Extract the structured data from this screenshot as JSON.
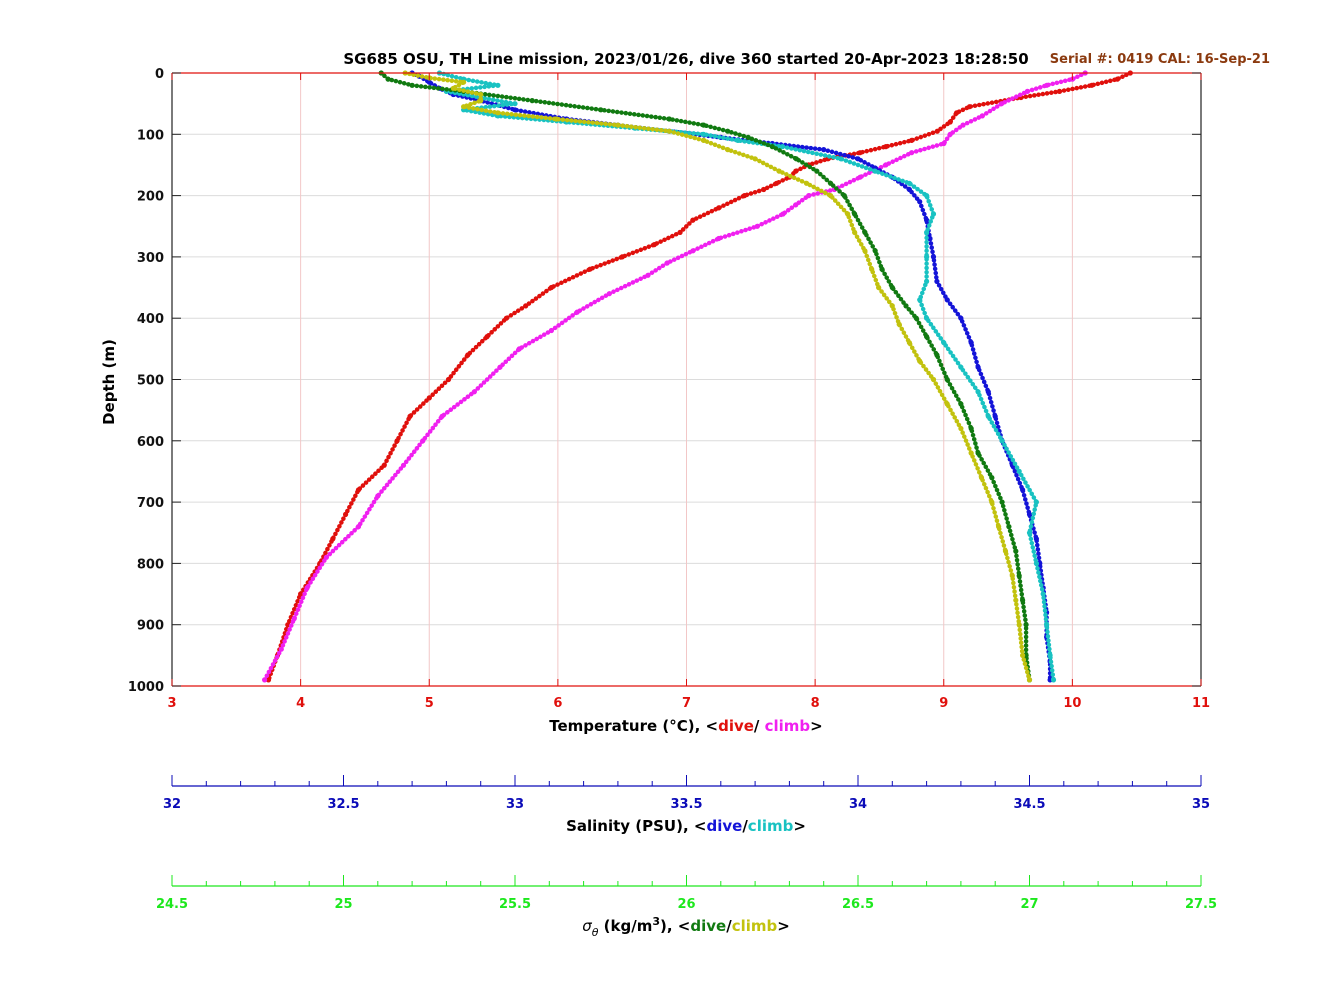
{
  "colors": {
    "temp": "#e0100c",
    "salinity": "#0b0bb8",
    "sigma": "#1de81d",
    "temp_dive": "#e0100c",
    "temp_climb": "#f020f0",
    "sal_dive": "#1414d8",
    "sal_climb": "#19c2c2",
    "sig_dive": "#117a11",
    "sig_climb": "#c2c20e",
    "serial": "#8b3a0f",
    "grid": "#f2c7c7"
  },
  "header": {
    "title": "SG685 OSU, TH Line mission, 2023/01/26, dive 360 started 20-Apr-2023 18:28:50",
    "serial": "Serial #: 0419  CAL: 16-Sep-21"
  },
  "chart_data": {
    "type": "scatter",
    "title": "SG685 OSU, TH Line mission, 2023/01/26, dive 360 started 20-Apr-2023 18:28:50",
    "ylabel": "Depth (m)",
    "ylim": [
      0,
      1000
    ],
    "y_reversed": true,
    "y_ticks": [
      0,
      100,
      200,
      300,
      400,
      500,
      600,
      700,
      800,
      900,
      1000
    ],
    "grid": true,
    "axes": [
      {
        "id": "temp",
        "label_prefix": "Temperature (°C), <",
        "label_dive": "dive",
        "label_sep": "/ ",
        "label_climb": "climb",
        "label_suffix": ">",
        "xlim": [
          3,
          11
        ],
        "ticks": [
          3,
          4,
          5,
          6,
          7,
          8,
          9,
          10,
          11
        ]
      },
      {
        "id": "salinity",
        "label_prefix": "Salinity (PSU), <",
        "label_dive": "dive",
        "label_sep": "/",
        "label_climb": "climb",
        "label_suffix": ">",
        "xlim": [
          32,
          35
        ],
        "ticks": [
          32,
          32.5,
          33,
          33.5,
          34,
          34.5,
          35
        ],
        "minor_step": 0.1
      },
      {
        "id": "sigma",
        "label_symbol": "σ",
        "label_symbol_sub": "θ",
        "label_prefix": " (kg/m",
        "label_sup": "3",
        "label_mid": "), <",
        "label_dive": "dive",
        "label_sep": "/",
        "label_climb": "climb",
        "label_suffix": ">",
        "xlim": [
          24.5,
          27.5
        ],
        "ticks": [
          24.5,
          25,
          25.5,
          26,
          26.5,
          27,
          27.5
        ],
        "minor_step": 0.1
      }
    ],
    "series": [
      {
        "name": "dive",
        "axis": "temp",
        "colorKey": "temp_dive",
        "depth": [
          0,
          10,
          20,
          30,
          40,
          55,
          65,
          80,
          95,
          110,
          120,
          130,
          140,
          150,
          160,
          170,
          180,
          190,
          200,
          220,
          240,
          260,
          280,
          300,
          320,
          350,
          380,
          400,
          430,
          460,
          500,
          530,
          560,
          600,
          640,
          680,
          720,
          760,
          800,
          850,
          900,
          950,
          990
        ],
        "x": [
          10.45,
          10.35,
          10.15,
          9.9,
          9.6,
          9.2,
          9.1,
          9.05,
          8.95,
          8.75,
          8.55,
          8.35,
          8.1,
          7.95,
          7.85,
          7.8,
          7.7,
          7.6,
          7.45,
          7.25,
          7.05,
          6.95,
          6.75,
          6.5,
          6.25,
          5.95,
          5.75,
          5.6,
          5.45,
          5.3,
          5.15,
          5.0,
          4.85,
          4.75,
          4.65,
          4.45,
          4.35,
          4.25,
          4.15,
          4.0,
          3.9,
          3.82,
          3.75
        ]
      },
      {
        "name": "climb",
        "axis": "temp",
        "colorKey": "temp_climb",
        "depth": [
          0,
          10,
          20,
          30,
          50,
          70,
          85,
          100,
          115,
          130,
          150,
          170,
          190,
          200,
          215,
          230,
          250,
          270,
          290,
          310,
          330,
          360,
          390,
          420,
          450,
          480,
          520,
          560,
          600,
          640,
          690,
          740,
          790,
          840,
          890,
          940,
          990
        ],
        "x": [
          10.1,
          10.0,
          9.8,
          9.65,
          9.45,
          9.3,
          9.15,
          9.05,
          9.0,
          8.75,
          8.55,
          8.35,
          8.15,
          7.95,
          7.85,
          7.75,
          7.55,
          7.25,
          7.05,
          6.85,
          6.7,
          6.4,
          6.15,
          5.95,
          5.7,
          5.55,
          5.35,
          5.1,
          4.95,
          4.8,
          4.6,
          4.45,
          4.2,
          4.05,
          3.95,
          3.85,
          3.72
        ]
      },
      {
        "name": "dive",
        "axis": "salinity",
        "colorKey": "sal_dive",
        "depth": [
          0,
          5,
          15,
          25,
          35,
          45,
          60,
          75,
          85,
          95,
          105,
          115,
          125,
          140,
          155,
          170,
          190,
          210,
          240,
          270,
          300,
          340,
          370,
          400,
          440,
          480,
          520,
          560,
          600,
          640,
          680,
          720,
          760,
          800,
          840,
          880,
          920,
          960,
          990
        ],
        "x": [
          32.7,
          32.72,
          32.75,
          32.78,
          32.82,
          32.9,
          33.0,
          33.15,
          33.3,
          33.45,
          33.6,
          33.75,
          33.9,
          34.0,
          34.05,
          34.1,
          34.15,
          34.18,
          34.2,
          34.21,
          34.22,
          34.23,
          34.26,
          34.3,
          34.33,
          34.35,
          34.38,
          34.4,
          34.42,
          34.45,
          34.48,
          34.5,
          34.52,
          34.53,
          34.54,
          34.55,
          34.55,
          34.56,
          34.56
        ]
      },
      {
        "name": "climb",
        "axis": "salinity",
        "colorKey": "sal_climb",
        "depth": [
          0,
          10,
          20,
          30,
          40,
          50,
          60,
          70,
          80,
          90,
          100,
          110,
          120,
          140,
          160,
          180,
          200,
          230,
          260,
          300,
          340,
          370,
          400,
          440,
          480,
          520,
          560,
          600,
          650,
          700,
          750,
          800,
          850,
          900,
          950,
          990
        ],
        "x": [
          32.78,
          32.85,
          32.95,
          32.8,
          32.9,
          33.0,
          32.85,
          32.95,
          33.15,
          33.35,
          33.55,
          33.65,
          33.78,
          33.95,
          34.05,
          34.15,
          34.2,
          34.22,
          34.2,
          34.2,
          34.2,
          34.18,
          34.2,
          34.25,
          34.3,
          34.35,
          34.38,
          34.42,
          34.47,
          34.52,
          34.5,
          34.52,
          34.54,
          34.55,
          34.56,
          34.57
        ]
      },
      {
        "name": "dive",
        "axis": "sigma",
        "colorKey": "sig_dive",
        "depth": [
          0,
          10,
          20,
          30,
          45,
          60,
          75,
          85,
          95,
          105,
          120,
          140,
          160,
          180,
          200,
          230,
          260,
          290,
          320,
          350,
          380,
          400,
          430,
          460,
          500,
          540,
          580,
          620,
          660,
          700,
          740,
          780,
          820,
          860,
          900,
          950,
          990
        ],
        "x": [
          25.11,
          25.13,
          25.2,
          25.35,
          25.55,
          25.75,
          25.95,
          26.05,
          26.12,
          26.18,
          26.25,
          26.32,
          26.38,
          26.42,
          26.46,
          26.49,
          26.52,
          26.55,
          26.57,
          26.6,
          26.64,
          26.67,
          26.7,
          26.73,
          26.76,
          26.8,
          26.83,
          26.85,
          26.89,
          26.92,
          26.94,
          26.96,
          26.97,
          26.98,
          26.99,
          26.99,
          27.0
        ]
      },
      {
        "name": "climb",
        "axis": "sigma",
        "colorKey": "sig_climb",
        "depth": [
          0,
          8,
          15,
          25,
          35,
          45,
          55,
          65,
          75,
          85,
          95,
          110,
          125,
          140,
          160,
          180,
          200,
          230,
          260,
          290,
          320,
          350,
          380,
          410,
          440,
          470,
          500,
          540,
          580,
          620,
          660,
          700,
          740,
          780,
          820,
          860,
          900,
          950,
          990
        ],
        "x": [
          25.18,
          25.25,
          25.35,
          25.32,
          25.4,
          25.4,
          25.35,
          25.45,
          25.62,
          25.8,
          25.95,
          26.05,
          26.12,
          26.2,
          26.27,
          26.35,
          26.42,
          26.47,
          26.49,
          26.52,
          26.54,
          26.56,
          26.6,
          26.62,
          26.65,
          26.68,
          26.72,
          26.76,
          26.8,
          26.83,
          26.86,
          26.89,
          26.91,
          26.93,
          26.95,
          26.96,
          26.97,
          26.98,
          27.0
        ]
      }
    ]
  }
}
